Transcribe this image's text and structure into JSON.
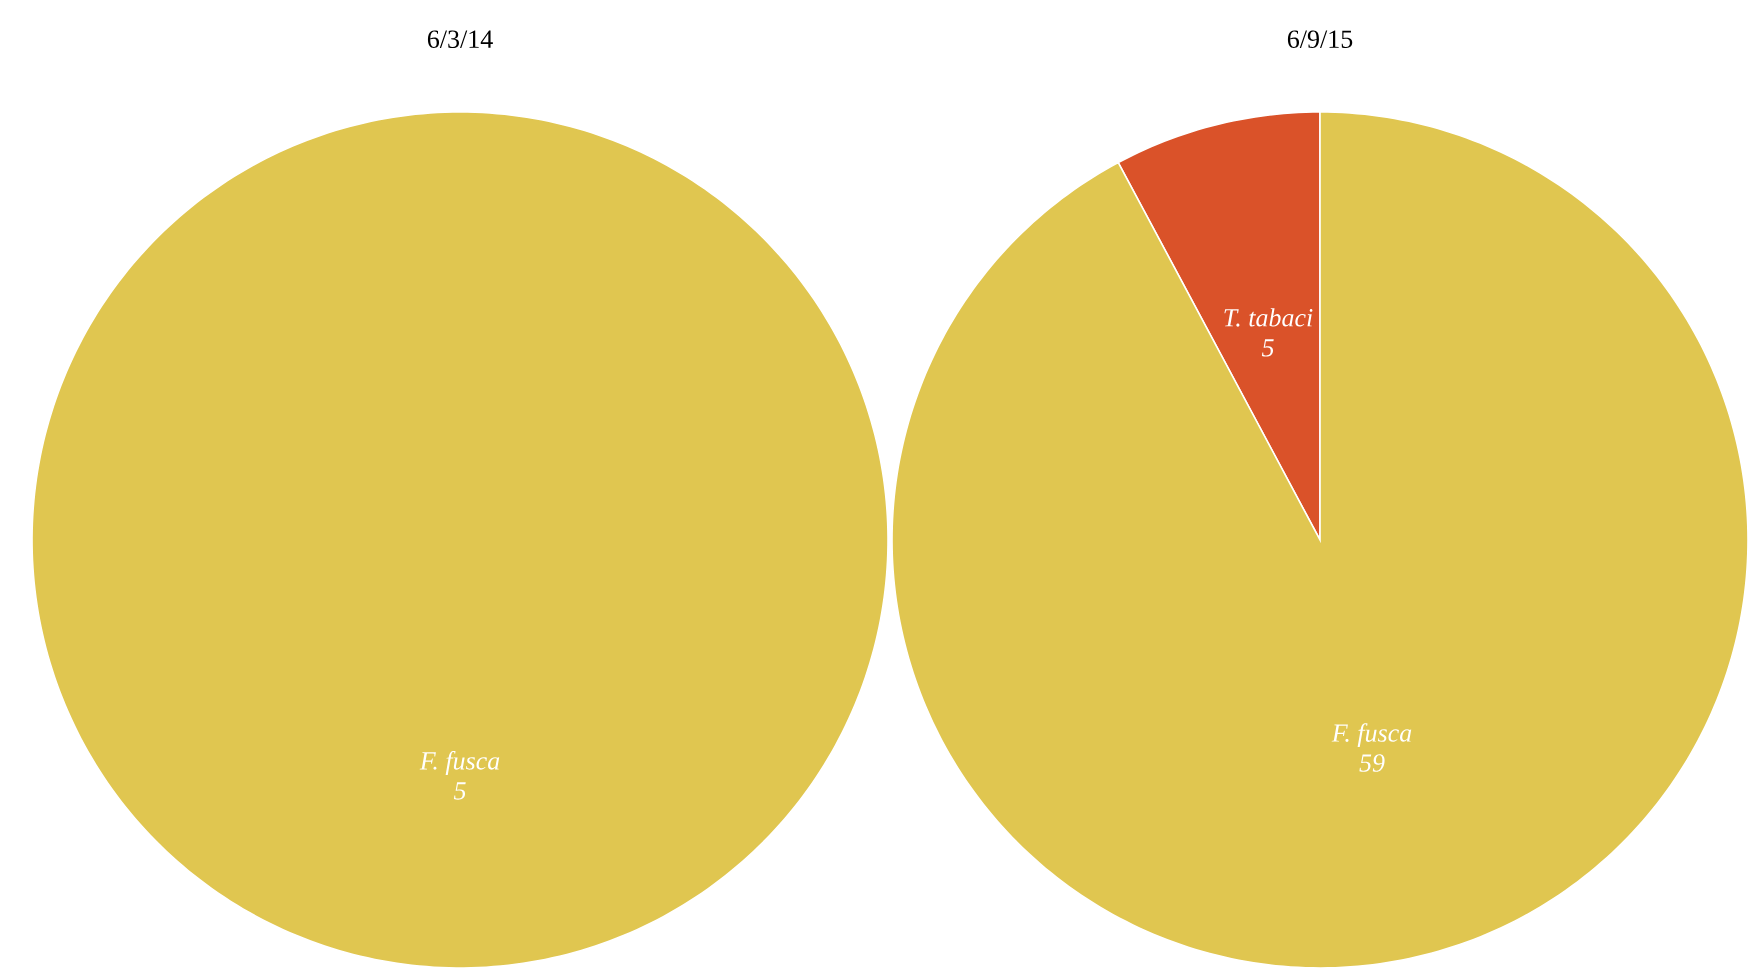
{
  "chart_data": [
    {
      "type": "pie",
      "title": "6/3/14",
      "categories": [
        "F. fusca"
      ],
      "values": [
        5
      ],
      "colors": [
        "#e0c650"
      ],
      "data_labels": true
    },
    {
      "type": "pie",
      "title": "6/9/15",
      "categories": [
        "T. tabaci",
        "F. fusca"
      ],
      "values": [
        5,
        59
      ],
      "colors": [
        "#da5229",
        "#e0c650"
      ],
      "data_labels": true
    }
  ]
}
